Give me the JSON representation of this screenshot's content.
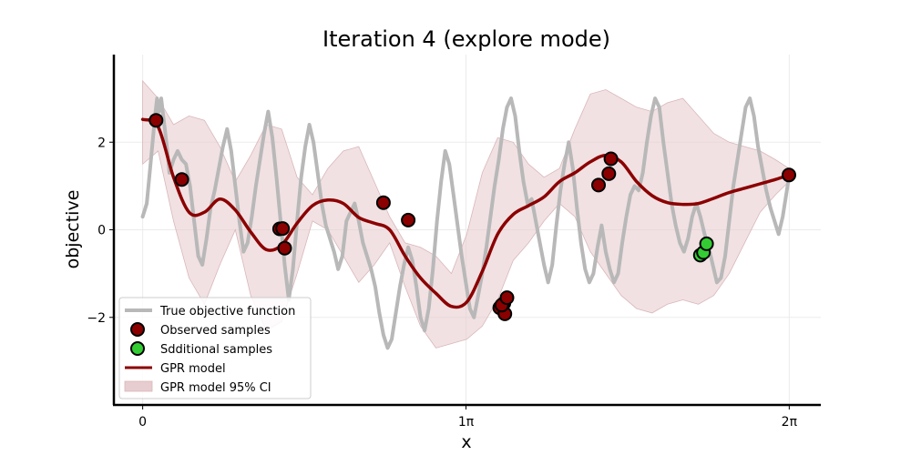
{
  "chart_data": {
    "type": "line",
    "title": "Iteration 4 (explore mode)",
    "xlabel": "x",
    "ylabel": "objective",
    "xlim": [
      -0.28,
      6.59
    ],
    "ylim": [
      -4.0,
      4.0
    ],
    "grid": true,
    "legend_position": "lower-left",
    "x_ticks": [
      {
        "value": 0,
        "label": "0"
      },
      {
        "value": 3.14159,
        "label": "1π"
      },
      {
        "value": 6.28318,
        "label": "2π"
      }
    ],
    "y_ticks": [
      {
        "value": -2,
        "label": "−2"
      },
      {
        "value": 0,
        "label": "0"
      },
      {
        "value": 2,
        "label": "2"
      }
    ],
    "legend": {
      "true_function": "True objective function",
      "observed": "Observed samples",
      "additional": "Sdditional samples",
      "gpr": "GPR model",
      "ci": "GPR model 95% CI"
    },
    "colors": {
      "true_function": "#b8b8b8",
      "observed_fill": "#8b0000",
      "additional_fill": "#33cc33",
      "gpr": "#8b0000",
      "ci": "#e8cdd0"
    },
    "true_function": {
      "x": [
        0.0,
        0.04,
        0.08,
        0.12,
        0.14,
        0.16,
        0.18,
        0.2,
        0.22,
        0.24,
        0.26,
        0.3,
        0.34,
        0.38,
        0.42,
        0.46,
        0.5,
        0.54,
        0.58,
        0.62,
        0.66,
        0.7,
        0.74,
        0.78,
        0.82,
        0.86,
        0.9,
        0.94,
        0.98,
        1.02,
        1.06,
        1.1,
        1.14,
        1.18,
        1.22,
        1.26,
        1.3,
        1.34,
        1.38,
        1.42,
        1.46,
        1.5,
        1.54,
        1.58,
        1.62,
        1.66,
        1.7,
        1.74,
        1.78,
        1.82,
        1.86,
        1.9,
        1.94,
        1.98,
        2.02,
        2.06,
        2.1,
        2.14,
        2.18,
        2.22,
        2.26,
        2.3,
        2.34,
        2.38,
        2.42,
        2.46,
        2.5,
        2.54,
        2.58,
        2.62,
        2.66,
        2.7,
        2.74,
        2.78,
        2.82,
        2.86,
        2.9,
        2.94,
        2.98,
        3.02,
        3.06,
        3.1,
        3.14,
        3.18,
        3.22,
        3.26,
        3.3,
        3.34,
        3.38,
        3.42,
        3.46,
        3.5,
        3.54,
        3.58,
        3.62,
        3.66,
        3.7,
        3.74,
        3.78,
        3.82,
        3.86,
        3.9,
        3.94,
        3.98,
        4.02,
        4.06,
        4.1,
        4.14,
        4.18,
        4.22,
        4.26,
        4.3,
        4.34,
        4.38,
        4.42,
        4.46,
        4.5,
        4.54,
        4.58,
        4.62,
        4.66,
        4.7,
        4.74,
        4.78,
        4.82,
        4.86,
        4.9,
        4.94,
        4.98,
        5.02,
        5.06,
        5.1,
        5.14,
        5.18,
        5.22,
        5.26,
        5.3,
        5.34,
        5.38,
        5.42,
        5.46,
        5.5,
        5.54,
        5.58,
        5.62,
        5.66,
        5.7,
        5.74,
        5.78,
        5.82,
        5.86,
        5.9,
        5.94,
        5.98,
        6.02,
        6.06,
        6.1,
        6.14,
        6.18,
        6.22,
        6.28
      ],
      "y": [
        0.3,
        0.6,
        1.6,
        2.6,
        3.0,
        2.7,
        3.0,
        2.6,
        2.2,
        1.8,
        1.3,
        1.6,
        1.8,
        1.6,
        1.5,
        1.0,
        0.2,
        -0.6,
        -0.8,
        -0.2,
        0.5,
        0.9,
        1.4,
        1.9,
        2.3,
        1.8,
        1.0,
        0.2,
        -0.5,
        -0.3,
        0.3,
        1.0,
        1.6,
        2.2,
        2.7,
        2.1,
        1.2,
        0.2,
        -0.8,
        -1.6,
        -0.9,
        0.2,
        1.2,
        1.9,
        2.4,
        2.0,
        1.3,
        0.6,
        0.1,
        -0.2,
        -0.5,
        -0.9,
        -0.6,
        0.2,
        0.4,
        0.6,
        0.2,
        -0.3,
        -0.6,
        -0.9,
        -1.3,
        -1.9,
        -2.4,
        -2.7,
        -2.5,
        -1.9,
        -1.3,
        -0.8,
        -0.4,
        -0.7,
        -1.3,
        -2.0,
        -2.3,
        -1.8,
        -0.9,
        0.2,
        1.1,
        1.8,
        1.5,
        0.8,
        0.1,
        -0.6,
        -1.2,
        -1.8,
        -2.0,
        -1.5,
        -1.0,
        -0.4,
        0.3,
        1.0,
        1.6,
        2.3,
        2.8,
        3.0,
        2.6,
        1.8,
        1.1,
        0.6,
        0.7,
        0.2,
        -0.3,
        -0.8,
        -1.2,
        -0.8,
        0.1,
        0.9,
        1.5,
        2.0,
        1.4,
        0.5,
        -0.3,
        -0.9,
        -1.2,
        -1.0,
        -0.4,
        0.1,
        -0.5,
        -0.9,
        -1.2,
        -1.0,
        -0.3,
        0.3,
        0.8,
        1.0,
        0.9,
        1.3,
        2.0,
        2.6,
        3.0,
        2.8,
        2.0,
        1.3,
        0.6,
        0.1,
        -0.3,
        -0.5,
        -0.2,
        0.3,
        0.6,
        0.3,
        -0.1,
        -0.4,
        -0.8,
        -1.2,
        -1.1,
        -0.6,
        0.2,
        1.0,
        1.6,
        2.2,
        2.8,
        3.0,
        2.6,
        1.9,
        1.4,
        0.9,
        0.5,
        0.2,
        -0.1,
        0.3,
        1.2
      ]
    },
    "gpr": {
      "x": [
        0.0,
        0.15,
        0.3,
        0.45,
        0.6,
        0.75,
        0.9,
        1.05,
        1.2,
        1.35,
        1.5,
        1.65,
        1.8,
        1.95,
        2.1,
        2.25,
        2.4,
        2.55,
        2.7,
        2.85,
        3.0,
        3.15,
        3.3,
        3.45,
        3.6,
        3.75,
        3.9,
        4.05,
        4.2,
        4.35,
        4.5,
        4.65,
        4.8,
        4.95,
        5.1,
        5.25,
        5.4,
        5.55,
        5.7,
        5.85,
        6.0,
        6.15,
        6.28
      ],
      "y": [
        2.52,
        2.35,
        1.2,
        0.4,
        0.4,
        0.7,
        0.45,
        -0.05,
        -0.45,
        -0.35,
        0.15,
        0.55,
        0.68,
        0.6,
        0.28,
        0.15,
        0.0,
        -0.6,
        -1.1,
        -1.45,
        -1.75,
        -1.65,
        -0.95,
        -0.1,
        0.35,
        0.55,
        0.75,
        1.1,
        1.3,
        1.55,
        1.7,
        1.55,
        1.1,
        0.78,
        0.62,
        0.58,
        0.6,
        0.72,
        0.85,
        0.95,
        1.05,
        1.15,
        1.25
      ],
      "ci_upper": [
        3.4,
        3.0,
        2.4,
        2.6,
        2.5,
        1.9,
        1.1,
        1.7,
        2.4,
        2.3,
        1.2,
        0.8,
        1.4,
        1.8,
        1.9,
        1.1,
        0.3,
        -0.3,
        -0.4,
        -0.6,
        -1.0,
        -0.1,
        1.3,
        2.1,
        2.0,
        1.5,
        1.2,
        1.4,
        2.3,
        3.1,
        3.2,
        3.0,
        2.8,
        2.7,
        2.9,
        3.0,
        2.6,
        2.2,
        2.0,
        1.9,
        1.8,
        1.6,
        1.4
      ],
      "ci_lower": [
        1.5,
        1.8,
        0.2,
        -1.1,
        -1.7,
        -0.8,
        0.0,
        -1.5,
        -2.3,
        -2.1,
        -1.0,
        0.2,
        0.0,
        -0.6,
        -1.2,
        -0.8,
        -0.3,
        -1.3,
        -2.2,
        -2.7,
        -2.6,
        -2.5,
        -2.2,
        -1.6,
        -0.7,
        -0.3,
        0.2,
        0.6,
        0.3,
        -0.5,
        -1.0,
        -1.5,
        -1.8,
        -1.9,
        -1.7,
        -1.6,
        -1.7,
        -1.5,
        -1.0,
        -0.3,
        0.4,
        0.8,
        1.1
      ]
    },
    "observed": {
      "x": [
        0.13,
        0.38,
        1.33,
        1.36,
        1.38,
        2.34,
        2.58,
        3.47,
        3.51,
        3.52,
        3.49,
        3.54,
        4.43,
        4.53,
        4.55,
        6.28
      ],
      "y": [
        2.5,
        1.15,
        0.02,
        0.03,
        -0.42,
        0.62,
        0.22,
        -1.78,
        -1.68,
        -1.92,
        -1.72,
        -1.55,
        1.02,
        1.28,
        1.62,
        1.25
      ]
    },
    "additional": {
      "x": [
        5.42,
        5.45,
        5.48
      ],
      "y": [
        -0.58,
        -0.52,
        -0.32
      ]
    }
  }
}
